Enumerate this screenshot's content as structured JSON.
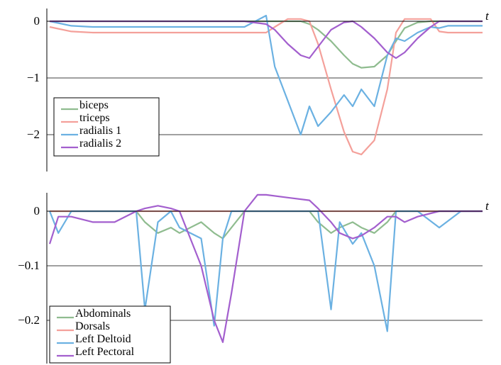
{
  "chart_data": [
    {
      "type": "line",
      "xlabel": "t",
      "ylabel": "",
      "yticks": [
        {
          "value": 0,
          "label": "0"
        },
        {
          "value": -1,
          "label": "−1"
        },
        {
          "value": -2,
          "label": "−2"
        }
      ],
      "ylim": [
        -2.7,
        0.3
      ],
      "xlim": [
        0,
        100
      ],
      "grid": "horizontal",
      "legend_position": "bottom-left",
      "x": [
        0,
        5,
        10,
        15,
        20,
        25,
        30,
        35,
        40,
        45,
        50,
        52,
        55,
        58,
        60,
        62,
        65,
        68,
        70,
        72,
        75,
        78,
        80,
        82,
        85,
        88,
        90,
        92,
        95,
        100
      ],
      "series": [
        {
          "name": "biceps",
          "color": "#8fbc8f",
          "values": [
            0,
            0,
            0,
            0,
            0,
            0,
            0,
            0,
            0,
            0,
            0,
            0,
            0,
            0,
            -0.05,
            -0.15,
            -0.35,
            -0.6,
            -0.75,
            -0.82,
            -0.8,
            -0.6,
            -0.35,
            -0.12,
            -0.02,
            0,
            0,
            0,
            0,
            0
          ]
        },
        {
          "name": "triceps",
          "color": "#f4a09a",
          "values": [
            -0.1,
            -0.18,
            -0.2,
            -0.2,
            -0.2,
            -0.2,
            -0.2,
            -0.2,
            -0.2,
            -0.2,
            -0.2,
            -0.1,
            0.04,
            0.04,
            0,
            -0.4,
            -1.2,
            -1.95,
            -2.3,
            -2.35,
            -2.1,
            -1.2,
            -0.2,
            0.04,
            0.04,
            0.04,
            -0.18,
            -0.2,
            -0.2,
            -0.2
          ]
        },
        {
          "name": "radialis 1",
          "color": "#6bb1e2",
          "values": [
            0,
            -0.08,
            -0.1,
            -0.1,
            -0.1,
            -0.1,
            -0.1,
            -0.1,
            -0.1,
            -0.1,
            0.1,
            -0.8,
            -1.4,
            -2.0,
            -1.5,
            -1.85,
            -1.6,
            -1.3,
            -1.5,
            -1.2,
            -1.5,
            -0.6,
            -0.3,
            -0.35,
            -0.2,
            -0.1,
            -0.12,
            -0.08,
            -0.08,
            -0.08
          ]
        },
        {
          "name": "radialis 2",
          "color": "#a35fce",
          "values": [
            0,
            0,
            0,
            0,
            0,
            0,
            0,
            0,
            0,
            0,
            -0.05,
            -0.15,
            -0.4,
            -0.6,
            -0.65,
            -0.45,
            -0.15,
            -0.02,
            0,
            -0.1,
            -0.3,
            -0.55,
            -0.65,
            -0.55,
            -0.3,
            -0.1,
            0,
            0,
            0,
            0
          ]
        }
      ]
    },
    {
      "type": "line",
      "xlabel": "t",
      "ylabel": "",
      "yticks": [
        {
          "value": 0,
          "label": "0"
        },
        {
          "value": -0.1,
          "label": "−0.1"
        },
        {
          "value": -0.2,
          "label": "−0.2"
        }
      ],
      "ylim": [
        -0.27,
        0.04
      ],
      "xlim": [
        0,
        100
      ],
      "grid": "horizontal",
      "legend_position": "bottom-left",
      "x": [
        0,
        2,
        5,
        10,
        15,
        20,
        22,
        25,
        28,
        30,
        35,
        38,
        40,
        42,
        45,
        48,
        50,
        55,
        60,
        62,
        65,
        67,
        70,
        72,
        75,
        78,
        80,
        82,
        85,
        90,
        95,
        100
      ],
      "series": [
        {
          "name": "Abdominals",
          "color": "#8fbc8f",
          "values": [
            0,
            0,
            0,
            0,
            0,
            0,
            -0.02,
            -0.04,
            -0.03,
            -0.04,
            -0.02,
            -0.04,
            -0.05,
            -0.03,
            0,
            0,
            0,
            0,
            0,
            -0.02,
            -0.04,
            -0.03,
            -0.02,
            -0.03,
            -0.04,
            -0.02,
            0,
            0,
            0,
            0,
            0,
            0
          ]
        },
        {
          "name": "Dorsals",
          "color": "#f4a09a",
          "values": [
            0,
            0,
            0,
            0,
            0,
            0,
            0,
            0,
            0,
            0,
            0,
            0,
            0,
            0,
            0,
            0,
            0,
            0,
            0,
            0,
            0,
            0,
            0,
            0,
            0,
            0,
            0,
            0,
            0,
            0,
            0,
            0
          ]
        },
        {
          "name": "Left Deltoid",
          "color": "#6bb1e2",
          "values": [
            0,
            -0.04,
            0,
            0,
            0,
            0,
            -0.18,
            -0.02,
            0,
            -0.03,
            -0.05,
            -0.21,
            -0.05,
            0,
            0,
            0,
            0,
            0,
            0,
            0,
            -0.18,
            -0.02,
            -0.06,
            -0.04,
            -0.1,
            -0.22,
            0,
            0,
            0,
            -0.03,
            0,
            0
          ]
        },
        {
          "name": "Left Pectoral",
          "color": "#a35fce",
          "values": [
            -0.06,
            -0.01,
            -0.01,
            -0.02,
            -0.02,
            0,
            0.005,
            0.01,
            0.005,
            0,
            -0.1,
            -0.2,
            -0.24,
            -0.15,
            0,
            0.03,
            0.03,
            0.025,
            0.02,
            0.005,
            -0.02,
            -0.04,
            -0.05,
            -0.045,
            -0.03,
            -0.01,
            -0.01,
            -0.02,
            -0.01,
            0,
            0,
            0
          ]
        }
      ]
    }
  ]
}
